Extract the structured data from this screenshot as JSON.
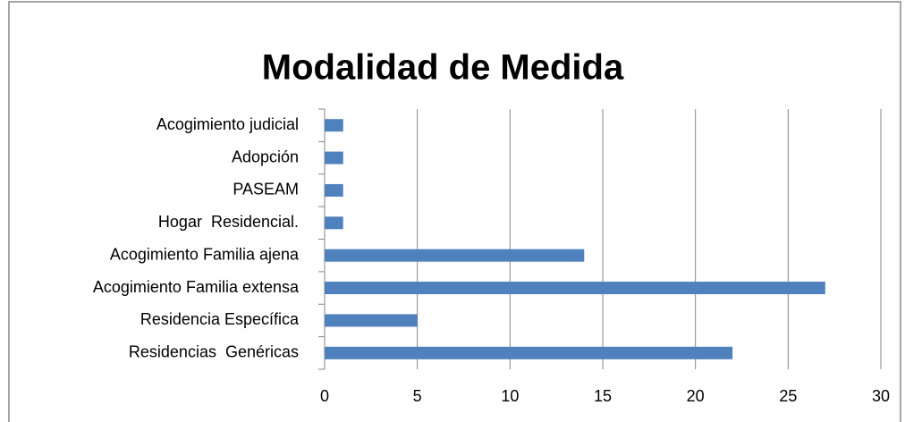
{
  "chart_data": {
    "type": "bar",
    "orientation": "horizontal",
    "title": "Modalidad de Medida",
    "categories": [
      "Acogimiento judicial",
      "Adopción",
      "PASEAM",
      "Hogar  Residencial.",
      "Acogimiento Familia ajena",
      "Acogimiento Familia extensa",
      "Residencia Específica",
      "Residencias  Genéricas"
    ],
    "values": [
      1,
      1,
      1,
      1,
      14,
      27,
      5,
      22
    ],
    "color": "#4f81bd",
    "xlim": [
      0,
      30
    ],
    "xticks": [
      0,
      5,
      10,
      15,
      20,
      25,
      30
    ],
    "grid": true
  }
}
